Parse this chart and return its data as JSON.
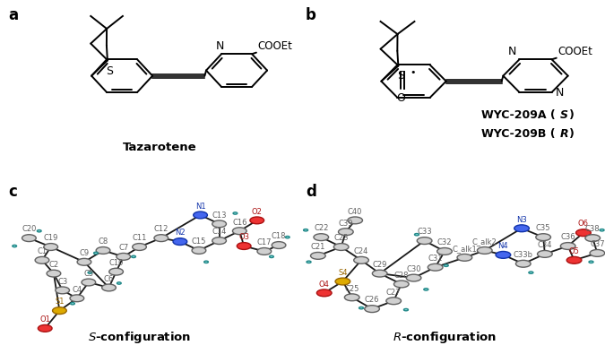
{
  "bg_color": "#ffffff",
  "label_a": "a",
  "label_b": "b",
  "label_c": "c",
  "label_d": "d",
  "tazarotene_label": "Tazarotene",
  "label_fontsize": 12,
  "bond_lw": 1.4,
  "text_color": "#000000",
  "s_config": "S-configuration",
  "r_config": "R-configuration",
  "wyc_a": "WYC-209A (",
  "wyc_a_italic": "S",
  "wyc_b": "WYC-209B (",
  "wyc_b_italic": "R",
  "ortep_bond_color": "#1a1a1a",
  "ortep_C_color": "#c0c0c0",
  "ortep_N_color": "#2255cc",
  "ortep_O_color": "#cc2222",
  "ortep_S_color": "#cc8800",
  "ortep_H_color": "#44cccc"
}
